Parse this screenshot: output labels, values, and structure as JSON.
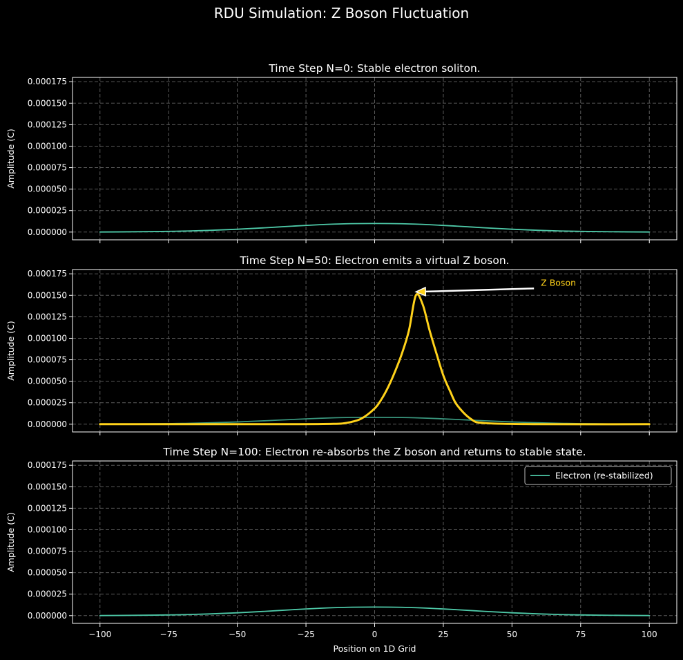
{
  "figure": {
    "suptitle": "RDU Simulation: Z Boson Fluctuation",
    "background": "#000000",
    "text_color": "#ffffff",
    "grid_color": "#5a5a5a",
    "electron_color": "#4ec9a8",
    "zboson_color": "#ffd21a",
    "arrow_color": "#ffffff"
  },
  "chart_data": [
    {
      "type": "line",
      "title": "Time Step N=0: Stable electron soliton.",
      "xlabel": "",
      "ylabel": "Amplitude (C)",
      "xlim": [
        -110,
        110
      ],
      "ylim": [
        -9e-06,
        0.00018
      ],
      "xticks": [
        -100,
        -75,
        -50,
        -25,
        0,
        25,
        50,
        75,
        100
      ],
      "xtick_labels_visible": false,
      "yticks": [
        "0.000000",
        "0.000025",
        "0.000050",
        "0.000075",
        "0.000100",
        "0.000125",
        "0.000150",
        "0.000175"
      ],
      "grid": true,
      "series": [
        {
          "color": "#4ec9a8",
          "x": [
            -100,
            -90,
            -80,
            -70,
            -60,
            -50,
            -40,
            -30,
            -20,
            -10,
            0,
            10,
            20,
            30,
            40,
            50,
            60,
            70,
            80,
            90,
            100
          ],
          "values": [
            1e-07,
            3e-07,
            6e-07,
            1.1e-06,
            2e-06,
            3.3e-06,
            5e-06,
            6.9e-06,
            8.6e-06,
            9.7e-06,
            1e-05,
            9.7e-06,
            8.6e-06,
            6.9e-06,
            5e-06,
            3.3e-06,
            2e-06,
            1.1e-06,
            6e-07,
            3e-07,
            1e-07
          ]
        }
      ]
    },
    {
      "type": "line",
      "title": "Time Step N=50: Electron emits a virtual Z boson.",
      "xlabel": "",
      "ylabel": "Amplitude (C)",
      "xlim": [
        -110,
        110
      ],
      "ylim": [
        -9e-06,
        0.00018
      ],
      "xticks": [
        -100,
        -75,
        -50,
        -25,
        0,
        25,
        50,
        75,
        100
      ],
      "xtick_labels_visible": false,
      "yticks": [
        "0.000000",
        "0.000025",
        "0.000050",
        "0.000075",
        "0.000100",
        "0.000125",
        "0.000150",
        "0.000175"
      ],
      "grid": true,
      "series": [
        {
          "color": "#4ec9a8",
          "x": [
            -100,
            -90,
            -80,
            -70,
            -60,
            -50,
            -40,
            -30,
            -20,
            -10,
            0,
            10,
            20,
            30,
            40,
            50,
            60,
            70,
            80,
            90,
            100
          ],
          "values": [
            1e-07,
            2e-07,
            5e-07,
            9e-07,
            1.6e-06,
            2.6e-06,
            4e-06,
            5.5e-06,
            6.9e-06,
            7.8e-06,
            8e-06,
            7.8e-06,
            6.9e-06,
            5.5e-06,
            4e-06,
            2.6e-06,
            1.6e-06,
            9e-07,
            5e-07,
            2e-07,
            1e-07
          ]
        },
        {
          "color": "#ffd21a",
          "x": [
            -100,
            -60,
            -30,
            -15,
            -10,
            -5,
            0,
            2.5,
            5,
            7.5,
            10,
            12.5,
            15,
            17.5,
            20,
            22.5,
            25,
            27.5,
            30,
            35,
            40,
            60,
            100
          ],
          "values": [
            0.0,
            0.0,
            0.0,
            4e-07,
            1.7e-06,
            6.2e-06,
            1.83e-05,
            2.91e-05,
            4.37e-05,
            6.19e-05,
            8.29e-05,
            0.0001093,
            0.00015,
            0.0001393,
            0.0001092,
            8.23e-05,
            5.68e-05,
            3.82e-05,
            2.22e-05,
            6.2e-06,
            1.3e-06,
            0.0,
            0.0
          ]
        }
      ],
      "annotation": {
        "text": "Z Boson",
        "color": "#ffd21a",
        "arrow_from": [
          58,
          0.000158
        ],
        "arrow_to": [
          15,
          0.000154
        ]
      }
    },
    {
      "type": "line",
      "title": "Time Step N=100: Electron re-absorbs the Z boson and returns to stable state.",
      "xlabel": "Position on 1D Grid",
      "ylabel": "Amplitude (C)",
      "xlim": [
        -110,
        110
      ],
      "ylim": [
        -9e-06,
        0.00018
      ],
      "xticks": [
        -100,
        -75,
        -50,
        -25,
        0,
        25,
        50,
        75,
        100
      ],
      "xtick_labels": [
        "−100",
        "−75",
        "−50",
        "−25",
        "0",
        "25",
        "50",
        "75",
        "100"
      ],
      "xtick_labels_visible": true,
      "yticks": [
        "0.000000",
        "0.000025",
        "0.000050",
        "0.000075",
        "0.000100",
        "0.000125",
        "0.000150",
        "0.000175"
      ],
      "grid": true,
      "legend": "top-right",
      "series": [
        {
          "name": "Electron (re-stabilized)",
          "color": "#4ec9a8",
          "x": [
            -100,
            -90,
            -80,
            -70,
            -60,
            -50,
            -40,
            -30,
            -20,
            -10,
            0,
            10,
            20,
            30,
            40,
            50,
            60,
            70,
            80,
            90,
            100
          ],
          "values": [
            1e-07,
            3e-07,
            6e-07,
            1.1e-06,
            2e-06,
            3.3e-06,
            5e-06,
            6.9e-06,
            8.6e-06,
            9.7e-06,
            1e-05,
            9.7e-06,
            8.6e-06,
            6.9e-06,
            5e-06,
            3.3e-06,
            2e-06,
            1.1e-06,
            6e-07,
            3e-07,
            1e-07
          ]
        }
      ]
    }
  ]
}
